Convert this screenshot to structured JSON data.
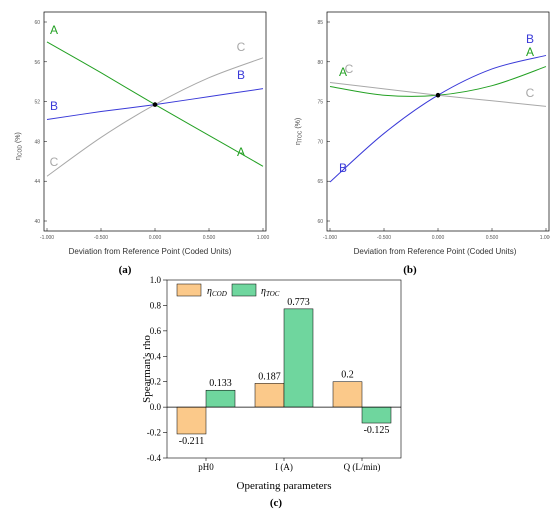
{
  "chart_data": [
    {
      "type": "line",
      "panel_label": "(a)",
      "xlabel": "Deviation from Reference Point (Coded Units)",
      "ylabel_main": "η",
      "ylabel_sub": "COD",
      "ylabel_unit": " (%)",
      "xlim": [
        -1,
        1
      ],
      "ylim": [
        40,
        60
      ],
      "x_ticks": [
        "-1.000",
        "-0.500",
        "0.000",
        "0.500",
        "1.000"
      ],
      "y_ticks": [
        "40",
        "44",
        "48",
        "52",
        "56",
        "60"
      ],
      "reference_point": [
        0,
        51.7
      ],
      "series": [
        {
          "name": "A",
          "color": "#22a022",
          "x": [
            -1,
            -0.5,
            0,
            0.5,
            1
          ],
          "y": [
            58.0,
            54.9,
            51.7,
            48.6,
            45.5
          ]
        },
        {
          "name": "B",
          "color": "#3a3ad8",
          "x": [
            -1,
            -0.5,
            0,
            0.5,
            1
          ],
          "y": [
            50.2,
            51.0,
            51.7,
            52.5,
            53.3
          ]
        },
        {
          "name": "C",
          "color": "#a8a8a8",
          "x": [
            -1,
            -0.5,
            0,
            0.5,
            1
          ],
          "y": [
            44.5,
            48.4,
            51.7,
            54.4,
            56.4
          ]
        }
      ]
    },
    {
      "type": "line",
      "panel_label": "(b)",
      "xlabel": "Deviation from Reference Point (Coded Units)",
      "ylabel_main": "η",
      "ylabel_sub": "TOC",
      "ylabel_unit": " (%)",
      "xlim": [
        -1,
        1
      ],
      "ylim": [
        60,
        85
      ],
      "x_ticks": [
        "-1.000",
        "-0.500",
        "0.000",
        "0.500",
        "1.000"
      ],
      "y_ticks": [
        "60",
        "65",
        "70",
        "75",
        "80",
        "85"
      ],
      "reference_point": [
        0,
        75.8
      ],
      "series": [
        {
          "name": "A",
          "color": "#22a022",
          "x": [
            -1,
            -0.5,
            0,
            0.5,
            1
          ],
          "y": [
            76.9,
            75.8,
            75.8,
            77.0,
            79.4
          ]
        },
        {
          "name": "B",
          "color": "#3a3ad8",
          "x": [
            -1,
            -0.5,
            0,
            0.5,
            1
          ],
          "y": [
            64.9,
            71.0,
            75.8,
            79.1,
            80.8
          ]
        },
        {
          "name": "C",
          "color": "#a8a8a8",
          "x": [
            -1,
            -0.5,
            0,
            0.5,
            1
          ],
          "y": [
            77.4,
            76.6,
            75.8,
            75.1,
            74.4
          ]
        }
      ]
    },
    {
      "type": "bar",
      "panel_label": "(c)",
      "xlabel": "Operating parameters",
      "ylabel": "Spearman's rho",
      "categories": [
        "pH0",
        "I (A)",
        "Q (L/min)"
      ],
      "ylim": [
        -0.4,
        1.0
      ],
      "y_ticks": [
        "-0.4",
        "-0.2",
        "0.0",
        "0.2",
        "0.4",
        "0.6",
        "0.8",
        "1.0"
      ],
      "legend": {
        "placement": "top-left"
      },
      "series": [
        {
          "name_main": "η",
          "name_sub": "COD",
          "color": "#fbc98a",
          "values": [
            -0.211,
            0.187,
            0.2
          ],
          "labels": [
            "-0.211",
            "0.187",
            "0.2"
          ]
        },
        {
          "name_main": "η",
          "name_sub": "TOC",
          "color": "#6fd69e",
          "values": [
            0.133,
            0.773,
            -0.125
          ],
          "labels": [
            "0.133",
            "0.773",
            "-0.125"
          ]
        }
      ]
    }
  ]
}
